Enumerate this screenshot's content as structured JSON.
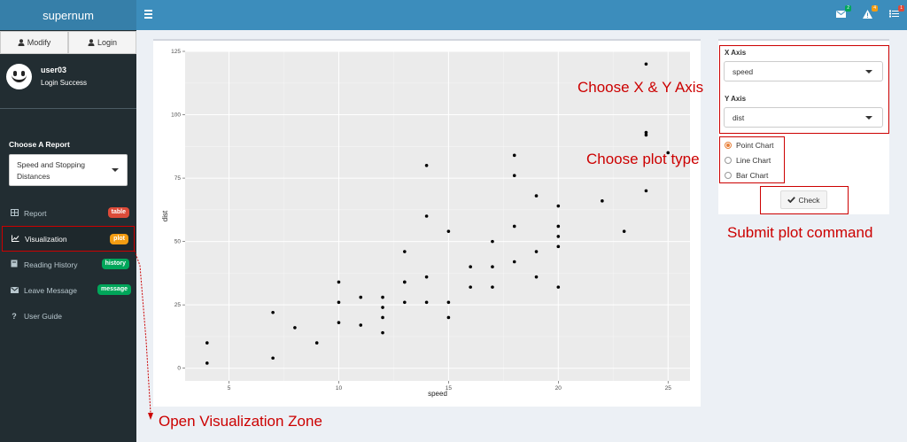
{
  "app": {
    "title": "supernum"
  },
  "auth": {
    "modify_label": "Modify",
    "login_label": "Login"
  },
  "user": {
    "name": "user03",
    "status": "Login Success"
  },
  "report": {
    "label": "Choose A Report",
    "selected_line1": "Speed and Stopping",
    "selected_line2": "Distances"
  },
  "menu": [
    {
      "label": "Report",
      "badge": "table",
      "badge_color": "#dd4b39",
      "icon": "table-icon"
    },
    {
      "label": "Visualization",
      "badge": "plot",
      "badge_color": "#f39c12",
      "icon": "line-chart-icon"
    },
    {
      "label": "Reading History",
      "badge": "history",
      "badge_color": "#00a65a",
      "icon": "book-icon"
    },
    {
      "label": "Leave Message",
      "badge": "message",
      "badge_color": "#00a65a",
      "icon": "envelope-icon"
    },
    {
      "label": "User Guide",
      "badge": "",
      "badge_color": "",
      "icon": "question-icon"
    }
  ],
  "header": {
    "messages_count": "2",
    "messages_color": "#00a65a",
    "warnings_count": "4",
    "warnings_color": "#f39c12",
    "tasks_count": "1",
    "tasks_color": "#dd4b39"
  },
  "controls": {
    "x_label": "X Axis",
    "x_value": "speed",
    "y_label": "Y Axis",
    "y_value": "dist",
    "chart_types": [
      "Point Chart",
      "Line Chart",
      "Bar Chart"
    ],
    "selected_chart_type": "Point Chart",
    "check_label": "Check"
  },
  "annotations": {
    "axis": "Choose X & Y Axis",
    "plot_type": "Choose plot type",
    "submit": "Submit plot command",
    "viz_zone": "Open Visualization Zone"
  },
  "chart_data": {
    "type": "scatter",
    "xlabel": "speed",
    "ylabel": "dist",
    "xlim": [
      3,
      26
    ],
    "ylim": [
      -5,
      125
    ],
    "xticks": [
      5,
      10,
      15,
      20,
      25
    ],
    "yticks": [
      0,
      25,
      50,
      75,
      100,
      125
    ],
    "grid": true,
    "x": [
      4,
      4,
      7,
      7,
      8,
      9,
      10,
      10,
      10,
      11,
      11,
      12,
      12,
      12,
      12,
      13,
      13,
      13,
      13,
      14,
      14,
      14,
      14,
      15,
      15,
      15,
      16,
      16,
      17,
      17,
      17,
      18,
      18,
      18,
      18,
      19,
      19,
      19,
      20,
      20,
      20,
      20,
      20,
      22,
      23,
      24,
      24,
      24,
      24,
      25
    ],
    "y": [
      2,
      10,
      4,
      22,
      16,
      10,
      18,
      26,
      34,
      17,
      28,
      14,
      20,
      24,
      28,
      26,
      34,
      34,
      46,
      26,
      36,
      60,
      80,
      20,
      26,
      54,
      32,
      40,
      32,
      40,
      50,
      42,
      56,
      76,
      84,
      36,
      46,
      68,
      32,
      48,
      52,
      56,
      64,
      66,
      54,
      70,
      92,
      93,
      120,
      85
    ]
  }
}
